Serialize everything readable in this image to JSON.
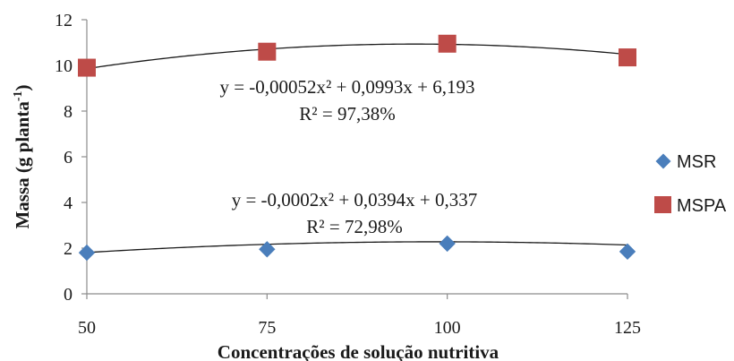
{
  "chart_data": {
    "type": "scatter",
    "xlabel": "Concentrações de solução nutritiva",
    "ylabel_main": "Massa (g planta",
    "ylabel_sup": "-1",
    "ylabel_close": ")",
    "xticks": [
      "50",
      "75",
      "100",
      "125"
    ],
    "yticks": [
      "0",
      "2",
      "4",
      "6",
      "8",
      "10",
      "12"
    ],
    "xlim": [
      50,
      125
    ],
    "ylim": [
      0,
      12
    ],
    "legend_position": "right",
    "series": [
      {
        "name": "MSR",
        "marker": "diamond",
        "color": "#4a7ebb",
        "x": [
          50,
          75,
          100,
          125
        ],
        "y": [
          1.8,
          1.95,
          2.2,
          1.85
        ],
        "fit": {
          "a": -0.0002,
          "b": 0.0394,
          "c": 0.337
        },
        "equation": "y = -0,0002x² + 0,0394x + 0,337",
        "r2": "R² = 72,98%"
      },
      {
        "name": "MSPA",
        "marker": "square",
        "color": "#be4b48",
        "x": [
          50,
          75,
          100,
          125
        ],
        "y": [
          9.9,
          10.6,
          10.95,
          10.35
        ],
        "fit": {
          "a": -0.00052,
          "b": 0.0993,
          "c": 6.193
        },
        "equation": "y = -0,00052x² + 0,0993x + 6,193",
        "r2": "R² = 97,38%"
      }
    ]
  }
}
